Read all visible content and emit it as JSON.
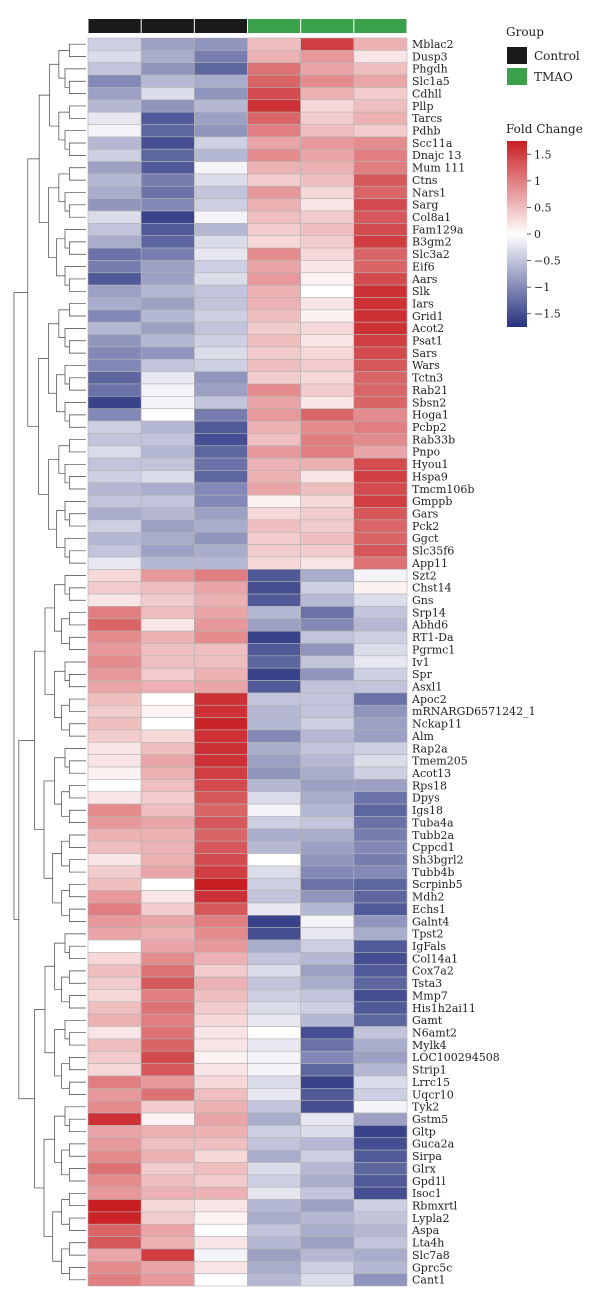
{
  "chart_data": {
    "type": "heatmap",
    "group_legend": {
      "title": "Group",
      "entries": [
        {
          "name": "Control",
          "color": "#1a1a1a"
        },
        {
          "name": "TMAO",
          "color": "#3aa14a"
        }
      ]
    },
    "columns": [
      {
        "group": "Control"
      },
      {
        "group": "Control"
      },
      {
        "group": "Control"
      },
      {
        "group": "TMAO"
      },
      {
        "group": "TMAO"
      },
      {
        "group": "TMAO"
      }
    ],
    "colorbar": {
      "title": "Fold Change",
      "ticks": [
        "1.5",
        "1",
        "0.5",
        "0",
        "−0.5",
        "−1",
        "−1.5"
      ],
      "tick_values": [
        1.5,
        1,
        0.5,
        0,
        -0.5,
        -1,
        -1.5
      ],
      "range": [
        -1.75,
        1.75
      ],
      "colors": {
        "low": "#26317f",
        "mid": "#ffffff",
        "high": "#c81e22"
      }
    },
    "genes": [
      "Mblac2",
      "Dusp3",
      "Phgdh",
      "Slc1a5",
      "Cdhll",
      "Pllp",
      "Tarcs",
      "Pdhb",
      "Scc11a",
      "Dnajc 13",
      "Mum 111",
      "Ctns",
      "Nars1",
      "Sarg",
      "Col8a1",
      "Fam129a",
      "B3gm2",
      "Slc3a2",
      "Eif6",
      "Aars",
      "Slk",
      "Iars",
      "Grid1",
      "Acot2",
      "Psat1",
      "Sars",
      "Wars",
      "Tctn3",
      "Rab21",
      "Sbsn2",
      "Hoga1",
      "Pcbp2",
      "Rab33b",
      "Pnpo",
      "Hyou1",
      "Hspa9",
      "Tmcm106b",
      "Gmppb",
      "Gars",
      "Pck2",
      "Ggct",
      "Slc35f6",
      "App11",
      "Szt2",
      "Chst14",
      "Gns",
      "Srp14",
      "Abhd6",
      "RT1-Da",
      "Pgrmc1",
      "Iv1",
      "Spr",
      "Asxl1",
      "Apoc2",
      "mRNARGD6571242_1",
      "Nckap11",
      "Alm",
      "Rap2a",
      "Tmem205",
      "Acot13",
      "Rps18",
      "Dpys",
      "Igs18",
      "Tuba4a",
      "Tubb2a",
      "Cppcd1",
      "Sh3bgrl2",
      "Tubb4b",
      "Scrpinb5",
      "Mdh2",
      "Echs1",
      "Galnt4",
      "Tpst2",
      "IgFals",
      "Col14a1",
      "Cox7a2",
      "Tsta3",
      "Mmp7",
      "His1h2ai11",
      "Gamt",
      "N6amt2",
      "Mylk4",
      "LOC100294508",
      "Strip1",
      "Lrrc15",
      "Uqcr10",
      "Tyk2",
      "Gstm5",
      "Gltp",
      "Guca2a",
      "Sirpa",
      "Glrx",
      "Gpd1l",
      "Isoc1",
      "Rbmxrtl",
      "Lypla2",
      "Aspa",
      "Lta4h",
      "Slc7a8",
      "Gprc5c",
      "Cant1"
    ],
    "values": [
      [
        -0.4,
        -0.8,
        -0.9,
        0.5,
        1.5,
        0.6
      ],
      [
        -0.3,
        -0.7,
        -1.1,
        0.6,
        0.8,
        0.2
      ],
      [
        -0.5,
        -0.9,
        -1.3,
        1.1,
        0.7,
        0.5
      ],
      [
        -1.0,
        -0.6,
        -0.7,
        1.2,
        0.9,
        0.7
      ],
      [
        -0.8,
        -0.3,
        -0.9,
        1.4,
        0.6,
        0.4
      ],
      [
        -0.6,
        -0.9,
        -0.6,
        1.6,
        0.3,
        0.5
      ],
      [
        -0.2,
        -1.4,
        -0.8,
        1.2,
        0.4,
        0.6
      ],
      [
        -0.1,
        -1.3,
        -0.9,
        1.0,
        0.5,
        0.4
      ],
      [
        -0.6,
        -1.5,
        -0.4,
        0.7,
        0.8,
        0.9
      ],
      [
        -0.4,
        -1.3,
        -0.6,
        0.9,
        0.7,
        1.0
      ],
      [
        -0.8,
        -1.4,
        -0.1,
        0.6,
        0.6,
        1.0
      ],
      [
        -0.6,
        -1.1,
        -0.3,
        0.4,
        0.5,
        1.3
      ],
      [
        -0.7,
        -1.2,
        -0.5,
        0.8,
        0.3,
        1.2
      ],
      [
        -0.9,
        -1.0,
        -0.4,
        0.6,
        0.2,
        1.4
      ],
      [
        -0.3,
        -1.6,
        -0.1,
        0.5,
        0.4,
        1.3
      ],
      [
        -0.5,
        -1.4,
        -0.6,
        0.4,
        0.5,
        1.4
      ],
      [
        -0.7,
        -1.3,
        -0.3,
        0.3,
        0.4,
        1.5
      ],
      [
        -1.2,
        -1.1,
        -0.2,
        0.9,
        0.3,
        1.2
      ],
      [
        -1.1,
        -0.8,
        -0.4,
        0.7,
        0.2,
        1.2
      ],
      [
        -1.4,
        -0.8,
        -0.3,
        0.8,
        0.1,
        1.4
      ],
      [
        -0.8,
        -0.6,
        -0.5,
        0.6,
        0.0,
        1.6
      ],
      [
        -0.7,
        -0.8,
        -0.5,
        0.6,
        0.2,
        1.6
      ],
      [
        -1.0,
        -0.6,
        -0.4,
        0.5,
        0.1,
        1.6
      ],
      [
        -0.6,
        -0.8,
        -0.5,
        0.4,
        0.3,
        1.6
      ],
      [
        -0.9,
        -0.6,
        -0.4,
        0.5,
        0.2,
        1.5
      ],
      [
        -1.0,
        -0.9,
        -0.3,
        0.4,
        0.3,
        1.4
      ],
      [
        -1.0,
        -0.5,
        -0.4,
        0.5,
        0.4,
        1.3
      ],
      [
        -1.3,
        -0.2,
        -0.9,
        0.4,
        0.3,
        1.2
      ],
      [
        -1.2,
        -0.1,
        -0.8,
        0.9,
        0.4,
        1.2
      ],
      [
        -1.6,
        -0.1,
        -0.5,
        0.7,
        0.2,
        1.2
      ],
      [
        -1.0,
        0.0,
        -1.1,
        0.8,
        1.2,
        0.9
      ],
      [
        -0.4,
        -0.6,
        -1.4,
        0.6,
        0.9,
        1.0
      ],
      [
        -0.5,
        -0.5,
        -1.5,
        0.5,
        1.0,
        0.9
      ],
      [
        -0.3,
        -0.6,
        -1.3,
        0.8,
        1.0,
        0.7
      ],
      [
        -0.5,
        -0.5,
        -1.2,
        0.6,
        0.6,
        1.4
      ],
      [
        -0.4,
        -0.3,
        -1.3,
        0.6,
        0.2,
        1.5
      ],
      [
        -0.6,
        -0.7,
        -1.0,
        0.7,
        0.5,
        1.4
      ],
      [
        -0.5,
        -0.5,
        -1.0,
        0.1,
        0.3,
        1.5
      ],
      [
        -0.7,
        -0.6,
        -0.8,
        0.3,
        0.4,
        1.3
      ],
      [
        -0.4,
        -0.8,
        -0.7,
        0.5,
        0.4,
        1.2
      ],
      [
        -0.6,
        -0.7,
        -0.9,
        0.4,
        0.5,
        1.2
      ],
      [
        -0.5,
        -0.8,
        -0.7,
        0.4,
        0.4,
        1.3
      ],
      [
        -0.2,
        -0.6,
        -0.6,
        0.3,
        0.2,
        1.1
      ],
      [
        0.3,
        0.8,
        1.0,
        -1.4,
        -0.7,
        -0.1
      ],
      [
        0.4,
        0.5,
        0.7,
        -1.5,
        -0.4,
        0.1
      ],
      [
        0.2,
        0.4,
        0.6,
        -1.4,
        -0.6,
        -0.3
      ],
      [
        1.0,
        0.5,
        0.7,
        -0.6,
        -1.2,
        -0.5
      ],
      [
        1.2,
        0.2,
        0.8,
        -0.8,
        -1.0,
        -0.6
      ],
      [
        0.9,
        0.6,
        0.9,
        -1.6,
        -0.5,
        -0.4
      ],
      [
        0.8,
        0.5,
        0.5,
        -1.4,
        -0.9,
        -0.3
      ],
      [
        0.9,
        0.5,
        0.5,
        -1.3,
        -0.5,
        -0.2
      ],
      [
        0.8,
        0.4,
        0.6,
        -1.6,
        -0.9,
        -0.4
      ],
      [
        0.7,
        0.6,
        0.7,
        -1.4,
        -0.5,
        -0.5
      ],
      [
        0.5,
        0.0,
        1.6,
        -0.5,
        -0.5,
        -1.2
      ],
      [
        0.4,
        0.1,
        1.6,
        -0.6,
        -0.5,
        -0.9
      ],
      [
        0.5,
        0.0,
        1.7,
        -0.6,
        -0.4,
        -0.8
      ],
      [
        0.4,
        0.3,
        1.6,
        -1.0,
        -0.6,
        -0.8
      ],
      [
        0.2,
        0.5,
        1.6,
        -0.7,
        -0.5,
        -0.4
      ],
      [
        0.2,
        0.7,
        1.6,
        -0.8,
        -0.6,
        -0.3
      ],
      [
        0.1,
        0.6,
        1.5,
        -0.9,
        -0.7,
        -0.4
      ],
      [
        0.0,
        0.5,
        1.4,
        -0.6,
        -0.8,
        -0.8
      ],
      [
        0.2,
        0.4,
        1.3,
        -0.3,
        -0.7,
        -1.2
      ],
      [
        0.9,
        0.5,
        1.2,
        -0.1,
        -0.6,
        -1.3
      ],
      [
        0.8,
        0.7,
        1.3,
        -0.4,
        -0.5,
        -1.2
      ],
      [
        0.6,
        0.6,
        1.2,
        -0.7,
        -0.7,
        -1.1
      ],
      [
        0.5,
        0.6,
        1.3,
        -0.6,
        -0.8,
        -1.0
      ],
      [
        0.2,
        0.6,
        1.4,
        0.0,
        -0.9,
        -1.1
      ],
      [
        0.4,
        0.7,
        1.5,
        -0.3,
        -1.0,
        -1.0
      ],
      [
        0.5,
        0.0,
        1.8,
        -0.4,
        -1.2,
        -1.3
      ],
      [
        0.8,
        0.2,
        1.6,
        -0.5,
        -0.9,
        -1.3
      ],
      [
        1.0,
        0.4,
        1.3,
        -0.2,
        -0.6,
        -1.4
      ],
      [
        0.8,
        0.7,
        1.0,
        -1.6,
        -0.1,
        -0.9
      ],
      [
        0.7,
        0.6,
        0.9,
        -1.5,
        -0.2,
        -0.7
      ],
      [
        0.0,
        0.7,
        0.8,
        -0.7,
        -0.4,
        -1.4
      ],
      [
        0.3,
        0.9,
        0.6,
        -0.5,
        -0.6,
        -1.5
      ],
      [
        0.5,
        1.1,
        0.4,
        -0.3,
        -0.8,
        -1.4
      ],
      [
        0.4,
        1.3,
        0.6,
        -0.5,
        -0.7,
        -1.3
      ],
      [
        0.3,
        1.0,
        0.5,
        -0.4,
        -0.5,
        -1.5
      ],
      [
        0.5,
        1.1,
        0.4,
        -0.3,
        -0.4,
        -1.4
      ],
      [
        0.6,
        1.0,
        0.3,
        -0.2,
        -0.6,
        -1.3
      ],
      [
        0.2,
        1.1,
        0.2,
        0.0,
        -1.5,
        -0.5
      ],
      [
        0.5,
        1.2,
        0.2,
        -0.2,
        -1.2,
        -0.7
      ],
      [
        0.4,
        1.4,
        0.1,
        -0.1,
        -1.0,
        -0.8
      ],
      [
        0.3,
        1.3,
        0.2,
        -0.1,
        -1.3,
        -0.6
      ],
      [
        1.0,
        0.8,
        0.3,
        -0.3,
        -1.6,
        -0.3
      ],
      [
        0.8,
        1.1,
        0.5,
        -0.2,
        -1.4,
        -0.4
      ],
      [
        0.9,
        0.4,
        0.6,
        -0.5,
        -1.5,
        -0.1
      ],
      [
        1.6,
        0.1,
        0.7,
        -0.7,
        -0.2,
        -0.8
      ],
      [
        0.7,
        0.6,
        0.6,
        -0.4,
        -0.3,
        -1.6
      ],
      [
        0.8,
        0.5,
        0.5,
        -0.5,
        -0.6,
        -1.5
      ],
      [
        0.9,
        0.6,
        0.3,
        -0.7,
        -0.4,
        -1.4
      ],
      [
        1.1,
        0.4,
        0.5,
        -0.3,
        -0.6,
        -1.3
      ],
      [
        0.9,
        0.5,
        0.4,
        -0.4,
        -0.7,
        -1.4
      ],
      [
        0.8,
        0.6,
        0.6,
        -0.2,
        -0.5,
        -1.5
      ],
      [
        1.8,
        0.3,
        0.2,
        -0.6,
        -0.8,
        -0.4
      ],
      [
        1.7,
        0.4,
        0.1,
        -0.7,
        -0.6,
        -0.5
      ],
      [
        1.2,
        0.7,
        0.0,
        -0.5,
        -0.7,
        -0.6
      ],
      [
        1.3,
        0.6,
        0.2,
        -0.6,
        -0.8,
        -0.5
      ],
      [
        0.7,
        1.5,
        -0.1,
        -0.8,
        -0.6,
        -0.7
      ],
      [
        0.9,
        0.7,
        0.2,
        -0.7,
        -0.4,
        -0.6
      ],
      [
        1.0,
        0.8,
        0.0,
        -0.6,
        -0.3,
        -0.9
      ]
    ]
  }
}
